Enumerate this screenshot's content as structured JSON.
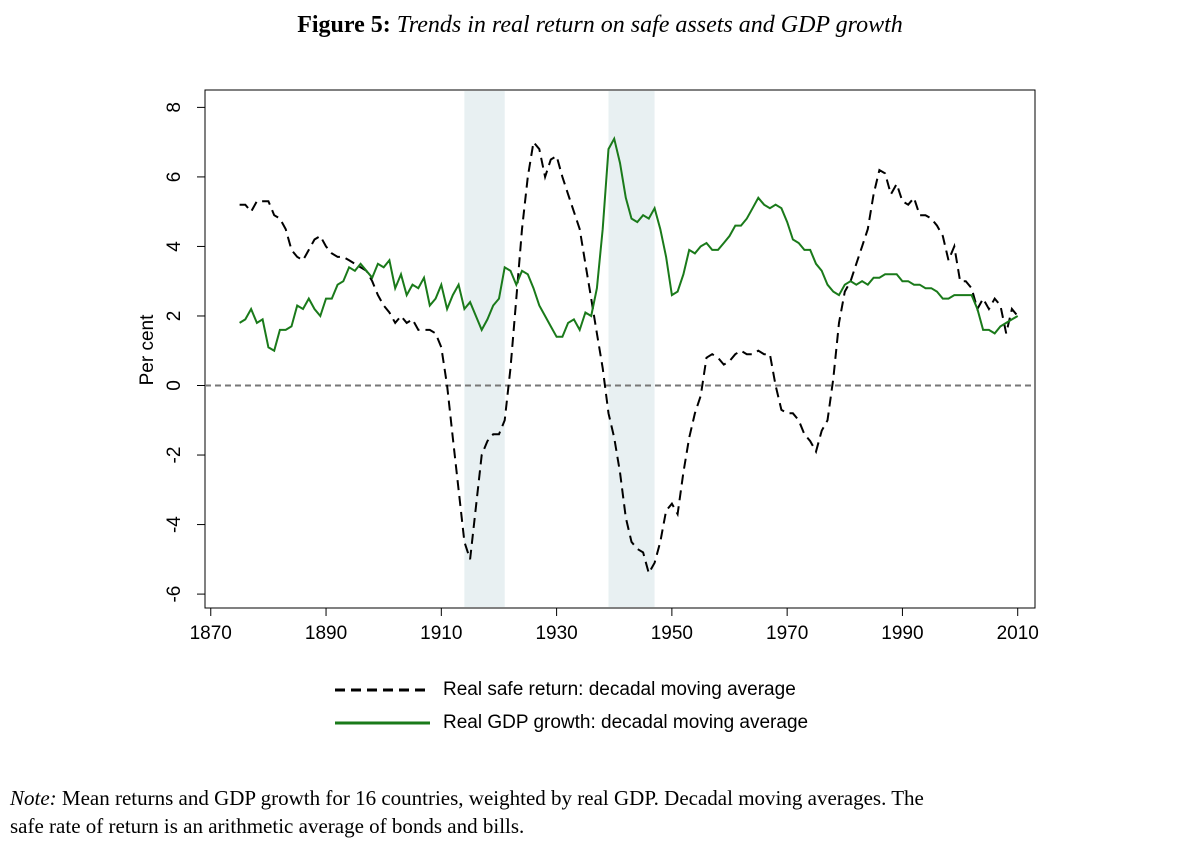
{
  "chart_data": {
    "type": "line",
    "figure_label": "Figure 5:",
    "title": "Trends in real return on safe assets and GDP growth",
    "ylabel": "Per cent",
    "note_label": "Note:",
    "note": "Mean returns and GDP growth for 16 countries, weighted by real GDP. Decadal moving averages. The safe rate of return is an arithmetic average of bonds and bills.",
    "xlim": [
      1869,
      2013
    ],
    "ylim": [
      -6.4,
      8.5
    ],
    "xticks": [
      1870,
      1890,
      1910,
      1930,
      1950,
      1970,
      1990,
      2010
    ],
    "yticks": [
      -6,
      -4,
      -2,
      0,
      2,
      4,
      6,
      8
    ],
    "hline": 0,
    "shaded_periods": [
      [
        1914,
        1921
      ],
      [
        1939,
        1947
      ]
    ],
    "x": [
      1875,
      1876,
      1877,
      1878,
      1879,
      1880,
      1881,
      1882,
      1883,
      1884,
      1885,
      1886,
      1887,
      1888,
      1889,
      1890,
      1891,
      1892,
      1893,
      1894,
      1895,
      1896,
      1897,
      1898,
      1899,
      1900,
      1901,
      1902,
      1903,
      1904,
      1905,
      1906,
      1907,
      1908,
      1909,
      1910,
      1911,
      1912,
      1913,
      1914,
      1915,
      1916,
      1917,
      1918,
      1919,
      1920,
      1921,
      1922,
      1923,
      1924,
      1925,
      1926,
      1927,
      1928,
      1929,
      1930,
      1931,
      1932,
      1933,
      1934,
      1935,
      1936,
      1937,
      1938,
      1939,
      1940,
      1941,
      1942,
      1943,
      1944,
      1945,
      1946,
      1947,
      1948,
      1949,
      1950,
      1951,
      1952,
      1953,
      1954,
      1955,
      1956,
      1957,
      1958,
      1959,
      1960,
      1961,
      1962,
      1963,
      1964,
      1965,
      1966,
      1967,
      1968,
      1969,
      1970,
      1971,
      1972,
      1973,
      1974,
      1975,
      1976,
      1977,
      1978,
      1979,
      1980,
      1981,
      1982,
      1983,
      1984,
      1985,
      1986,
      1987,
      1988,
      1989,
      1990,
      1991,
      1992,
      1993,
      1994,
      1995,
      1996,
      1997,
      1998,
      1999,
      2000,
      2001,
      2002,
      2003,
      2004,
      2005,
      2006,
      2007,
      2008,
      2009,
      2010
    ],
    "series": [
      {
        "name": "Real safe return: decadal moving average",
        "color": "#000000",
        "linestyle": "dashed",
        "values": [
          5.2,
          5.2,
          5.0,
          5.3,
          5.3,
          5.3,
          4.9,
          4.8,
          4.5,
          3.9,
          3.7,
          3.6,
          3.9,
          4.2,
          4.3,
          4.0,
          3.8,
          3.7,
          3.7,
          3.6,
          3.5,
          3.4,
          3.3,
          3.0,
          2.6,
          2.3,
          2.1,
          1.8,
          2.0,
          1.8,
          1.9,
          1.6,
          1.6,
          1.6,
          1.5,
          1.1,
          0.0,
          -1.5,
          -3.0,
          -4.5,
          -5.0,
          -3.5,
          -2.0,
          -1.6,
          -1.4,
          -1.4,
          -1.0,
          0.5,
          2.5,
          4.5,
          6.0,
          7.0,
          6.8,
          6.0,
          6.5,
          6.6,
          6.0,
          5.5,
          5.0,
          4.5,
          3.5,
          2.5,
          1.5,
          0.5,
          -0.8,
          -1.5,
          -2.5,
          -3.8,
          -4.5,
          -4.7,
          -4.8,
          -5.4,
          -5.1,
          -4.5,
          -3.6,
          -3.4,
          -3.7,
          -2.5,
          -1.5,
          -0.8,
          -0.3,
          0.8,
          0.9,
          0.8,
          0.6,
          0.7,
          0.9,
          1.0,
          0.9,
          0.9,
          1.0,
          0.9,
          0.9,
          0.0,
          -0.7,
          -0.8,
          -0.8,
          -1.0,
          -1.4,
          -1.6,
          -1.9,
          -1.3,
          -1.0,
          0.2,
          1.8,
          2.7,
          3.0,
          3.5,
          4.0,
          4.5,
          5.5,
          6.2,
          6.1,
          5.5,
          5.8,
          5.3,
          5.2,
          5.4,
          4.9,
          4.9,
          4.8,
          4.6,
          4.3,
          3.6,
          4.0,
          3.0,
          3.0,
          2.8,
          2.2,
          2.5,
          2.2,
          2.5,
          2.3,
          1.5,
          2.2,
          2.0
        ]
      },
      {
        "name": "Real GDP growth: decadal moving average",
        "color": "#1a7a1a",
        "linestyle": "solid",
        "values": [
          1.8,
          1.9,
          2.2,
          1.8,
          1.9,
          1.1,
          1.0,
          1.6,
          1.6,
          1.7,
          2.3,
          2.2,
          2.5,
          2.2,
          2.0,
          2.5,
          2.5,
          2.9,
          3.0,
          3.4,
          3.3,
          3.5,
          3.3,
          3.1,
          3.5,
          3.4,
          3.6,
          2.8,
          3.2,
          2.6,
          2.9,
          2.8,
          3.1,
          2.3,
          2.5,
          2.9,
          2.2,
          2.6,
          2.9,
          2.2,
          2.4,
          2.0,
          1.6,
          1.9,
          2.3,
          2.5,
          3.4,
          3.3,
          2.9,
          3.3,
          3.2,
          2.8,
          2.3,
          2.0,
          1.7,
          1.4,
          1.4,
          1.8,
          1.9,
          1.6,
          2.1,
          2.0,
          2.8,
          4.5,
          6.8,
          7.1,
          6.4,
          5.4,
          4.8,
          4.7,
          4.9,
          4.8,
          5.1,
          4.5,
          3.7,
          2.6,
          2.7,
          3.2,
          3.9,
          3.8,
          4.0,
          4.1,
          3.9,
          3.9,
          4.1,
          4.3,
          4.6,
          4.6,
          4.8,
          5.1,
          5.4,
          5.2,
          5.1,
          5.2,
          5.1,
          4.7,
          4.2,
          4.1,
          3.9,
          3.9,
          3.5,
          3.3,
          2.9,
          2.7,
          2.6,
          2.9,
          3.0,
          2.9,
          3.0,
          2.9,
          3.1,
          3.1,
          3.2,
          3.2,
          3.2,
          3.0,
          3.0,
          2.9,
          2.9,
          2.8,
          2.8,
          2.7,
          2.5,
          2.5,
          2.6,
          2.6,
          2.6,
          2.6,
          2.2,
          1.6,
          1.6,
          1.5,
          1.7,
          1.8,
          1.9,
          2.0
        ]
      }
    ]
  }
}
